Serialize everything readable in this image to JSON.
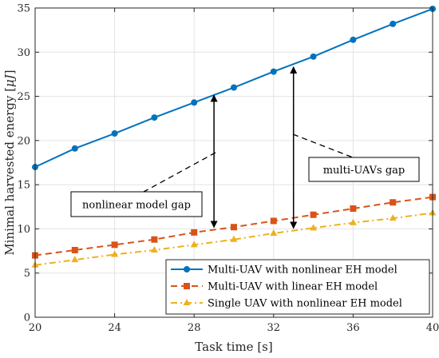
{
  "chart_data": {
    "type": "line",
    "xlabel": "Task time [s]",
    "ylabel": "Minimal harvested energy [",
    "ylabel_unit": "μJ",
    "ylabel_close": "]",
    "xlim": [
      20,
      40
    ],
    "ylim": [
      0,
      35
    ],
    "xticks": [
      20,
      24,
      28,
      32,
      36,
      40
    ],
    "yticks": [
      0,
      5,
      10,
      15,
      20,
      25,
      30,
      35
    ],
    "grid": true,
    "legend_position": "bottom-right",
    "series": [
      {
        "name": "Multi-UAV with nonlinear EH model",
        "color": "#0072BD",
        "line_style": "solid",
        "marker": "circle",
        "x": [
          20,
          22,
          24,
          26,
          28,
          30,
          32,
          34,
          36,
          38,
          40
        ],
        "values": [
          17.0,
          19.1,
          20.8,
          22.6,
          24.3,
          26.0,
          27.8,
          29.5,
          31.4,
          33.2,
          34.9
        ]
      },
      {
        "name": "Multi-UAV with linear EH model",
        "color": "#D95319",
        "line_style": "dashed",
        "marker": "square",
        "x": [
          20,
          22,
          24,
          26,
          28,
          30,
          32,
          34,
          36,
          38,
          40
        ],
        "values": [
          7.0,
          7.6,
          8.2,
          8.8,
          9.6,
          10.2,
          10.9,
          11.6,
          12.3,
          13.0,
          13.6
        ]
      },
      {
        "name": "Single UAV with nonlinear EH model",
        "color": "#EDB120",
        "line_style": "dashdot",
        "marker": "triangle",
        "x": [
          20,
          22,
          24,
          26,
          28,
          30,
          32,
          34,
          36,
          38,
          40
        ],
        "values": [
          5.9,
          6.5,
          7.1,
          7.6,
          8.2,
          8.8,
          9.5,
          10.1,
          10.7,
          11.2,
          11.8
        ]
      }
    ],
    "annotations": [
      {
        "text": "nonlinear model gap",
        "arrow_x": 29,
        "arrow_from": 9.9,
        "arrow_to": 25.3
      },
      {
        "text": "multi-UAVs gap",
        "arrow_x": 33,
        "arrow_from": 9.8,
        "arrow_to": 28.5
      }
    ]
  }
}
